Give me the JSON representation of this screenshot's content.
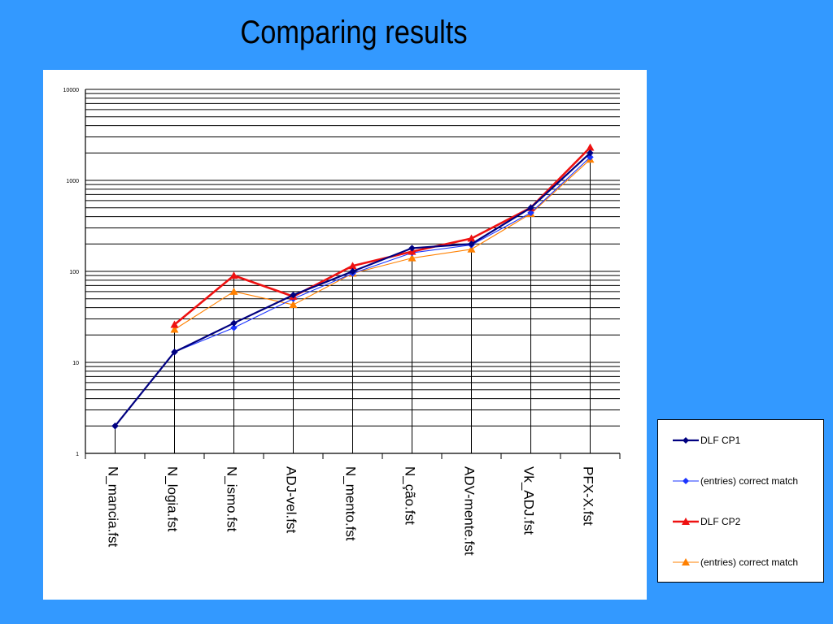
{
  "slide": {
    "title": "Comparing results"
  },
  "chart_data": {
    "type": "line",
    "yscale": "log",
    "ylim": [
      1,
      10000
    ],
    "y_ticks": [
      "1",
      "10",
      "100",
      "1000",
      "10000"
    ],
    "categories": [
      "N_mancia.fst",
      "N_logia.fst",
      "N_ismo.fst",
      "ADJ-vel.fst",
      "N_mento.fst",
      "N_ção.fst",
      "ADV-mente.fst",
      "Vk_ADJ.fst",
      "PFX-X.fst"
    ],
    "grid": true,
    "legend_position": "right-bottom",
    "series": [
      {
        "name": "DLF CP1",
        "color": "#000080",
        "marker": "diamond",
        "values": [
          2,
          13,
          27,
          55,
          100,
          180,
          200,
          500,
          2000
        ]
      },
      {
        "name": "(entries) correct match",
        "color": "#1a33ff",
        "marker": "diamond",
        "values": [
          2,
          13,
          24,
          50,
          95,
          160,
          195,
          440,
          1800
        ]
      },
      {
        "name": "DLF CP2",
        "color": "#ee1111",
        "marker": "triangle",
        "values": [
          null,
          26,
          90,
          53,
          115,
          165,
          230,
          500,
          2300
        ]
      },
      {
        "name": "(entries) correct match",
        "color": "#ff8000",
        "marker": "triangle",
        "values": [
          null,
          23,
          60,
          43,
          95,
          140,
          175,
          430,
          1700
        ]
      }
    ]
  }
}
